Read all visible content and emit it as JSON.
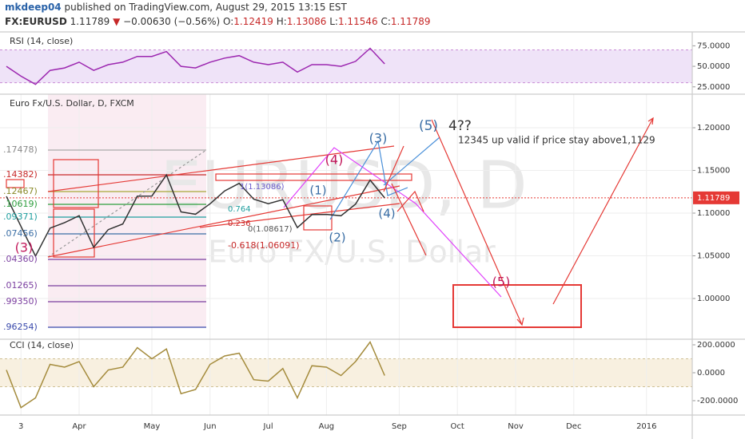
{
  "header": {
    "author": "mkdeep04",
    "published": "published on TradingView.com, August 29, 2015 13:15 EST",
    "symbol": "FX:EURUSD",
    "last": "1.11789",
    "arrow": "▼",
    "change": "−0.00630 (−0.56%)",
    "open_label": "O:",
    "open": "1.12419",
    "high_label": "H:",
    "high": "1.13086",
    "low_label": "L:",
    "low": "1.11546",
    "close_label": "C:",
    "close": "1.11789"
  },
  "chart_data": [
    {
      "type": "line",
      "title": "Euro Fx/U.S. Dollar, D, FXCM",
      "watermark": [
        "EURUSD, D",
        "Euro FX/U.S. Dollar"
      ],
      "categories": [
        null,
        "3",
        null,
        null,
        null,
        "Apr",
        null,
        null,
        null,
        null,
        "May",
        null,
        null,
        null,
        "Jun",
        null,
        null,
        null,
        "Jul",
        null,
        null,
        null,
        "Aug",
        null,
        null,
        null,
        null,
        "Sep",
        null,
        null,
        null,
        "Oct",
        null,
        null,
        null,
        "Nov",
        null,
        null,
        null,
        "Dec",
        null,
        null,
        null,
        null,
        "2016",
        null,
        null,
        null
      ],
      "values": [
        1.1196,
        1.0845,
        1.0497,
        1.0824,
        1.0889,
        1.097,
        1.06,
        1.0807,
        1.0873,
        1.1198,
        1.12,
        1.1447,
        1.1014,
        1.0987,
        1.1109,
        1.126,
        1.1349,
        1.1164,
        1.111,
        1.1158,
        1.083,
        1.0982,
        1.0985,
        1.0969,
        1.1106,
        1.1387,
        1.1179,
        null,
        null,
        null,
        null,
        null,
        null,
        null,
        null,
        null,
        null,
        null,
        null,
        null,
        null,
        null,
        null,
        null,
        null,
        null,
        null,
        null
      ],
      "color": "#333333",
      "ylim": [
        0.9523,
        1.2393
      ],
      "yticks": [
        {
          "value": 1.0,
          "label": "1.00000"
        },
        {
          "value": 1.05,
          "label": "1.05000"
        },
        {
          "value": 1.1,
          "label": "1.10000"
        },
        {
          "value": 1.15,
          "label": "1.15000"
        },
        {
          "value": 1.2,
          "label": "1.20000"
        }
      ],
      "grid": true,
      "last_price": 1.11789,
      "last_price_color": "#e53935",
      "annotations": [
        {
          "text": "(3)",
          "color": "#c2185b"
        },
        {
          "text": "(4)",
          "color": "#c2185b"
        },
        {
          "text": "(3)",
          "color": "#3a6ea5"
        },
        {
          "text": "(5)",
          "color": "#3a6ea5"
        },
        {
          "text": "4??",
          "color": "#333333"
        },
        {
          "text": "(1)",
          "color": "#3a6ea5"
        },
        {
          "text": "(2)",
          "color": "#3a6ea5"
        },
        {
          "text": "(4)",
          "color": "#3a6ea5"
        },
        {
          "text": "(5)",
          "color": "#c2185b"
        },
        {
          "text": "12345 up valid if price stay above1,1129",
          "color": "#333333"
        },
        {
          "text": "-0.618(1.06091)",
          "color": "#c62828"
        },
        {
          "text": "1(1.13086)",
          "color": "#6a5acd"
        },
        {
          "text": "0.764",
          "color": "#1e9e9e"
        },
        {
          "text": "0.236",
          "color": "#c62828"
        },
        {
          "text": "0(1.08617)",
          "color": "#555555"
        },
        {
          "text": ".17478)",
          "color": "#888888"
        },
        {
          "text": ".14382)",
          "color": "#c62828"
        },
        {
          "text": ".12467)",
          "color": "#8a8a2a"
        },
        {
          "text": ".10619)",
          "color": "#2e9e3e"
        },
        {
          "text": ".09371)",
          "color": "#1e9e9e"
        },
        {
          "text": ".07456)",
          "color": "#3a6ea5"
        },
        {
          "text": ".04360)",
          "color": "#7b3fa0"
        },
        {
          "text": ".01265)",
          "color": "#7b3fa0"
        },
        {
          "text": ".99350)",
          "color": "#7b3fa0"
        },
        {
          "text": ".96254)",
          "color": "#3949ab"
        }
      ]
    },
    {
      "type": "line",
      "title": "RSI (14, close)",
      "values": [
        50,
        38,
        28,
        45,
        48,
        55,
        45,
        52,
        55,
        62,
        62,
        68,
        50,
        48,
        55,
        60,
        63,
        55,
        52,
        55,
        43,
        52,
        52,
        50,
        56,
        72,
        53,
        null,
        null,
        null,
        null,
        null,
        null,
        null,
        null,
        null,
        null,
        null,
        null,
        null,
        null,
        null,
        null,
        null,
        null,
        null,
        null,
        null
      ],
      "color": "#9c27b0",
      "ylim": [
        18,
        88
      ],
      "yticks": [
        {
          "value": 25,
          "label": "25.0000"
        },
        {
          "value": 50,
          "label": "50.0000"
        },
        {
          "value": 75,
          "label": "75.0000"
        }
      ],
      "band": [
        30,
        70
      ],
      "band_color": "#efe3f8"
    },
    {
      "type": "line",
      "title": "CCI (14, close)",
      "values": [
        20,
        -250,
        -180,
        60,
        40,
        80,
        -100,
        20,
        40,
        180,
        100,
        170,
        -150,
        -120,
        60,
        120,
        140,
        -50,
        -60,
        30,
        -180,
        50,
        40,
        -20,
        80,
        220,
        -20,
        null,
        null,
        null,
        null,
        null,
        null,
        null,
        null,
        null,
        null,
        null,
        null,
        null,
        null,
        null,
        null,
        null,
        null,
        null,
        null,
        null
      ],
      "color": "#a48b3c",
      "ylim": [
        -303,
        240
      ],
      "yticks": [
        {
          "value": -200,
          "label": "-200.0000"
        },
        {
          "value": 0,
          "label": "0.0000"
        },
        {
          "value": 200,
          "label": "200.0000"
        }
      ],
      "band": [
        -100,
        100
      ],
      "band_color": "#f8f0e0"
    }
  ]
}
